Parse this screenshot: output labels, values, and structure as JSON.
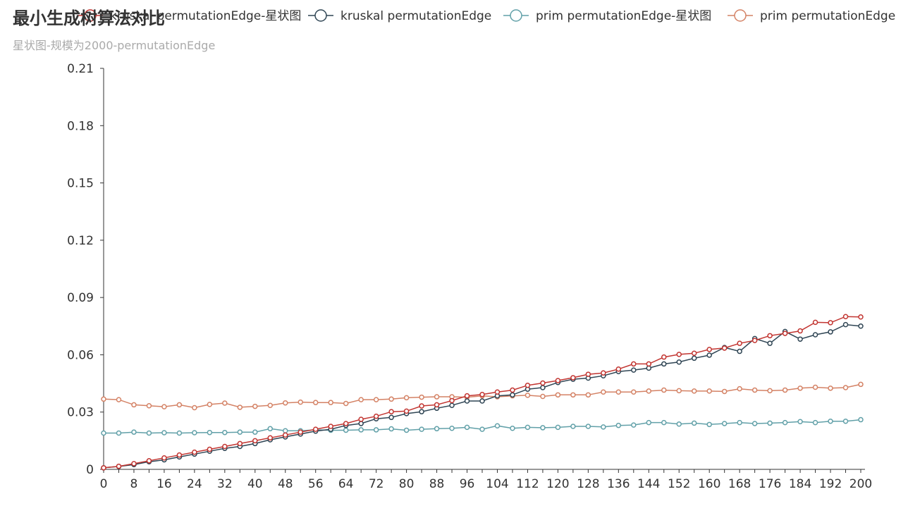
{
  "chart_data": {
    "type": "line",
    "title": "最小生成树算法对比",
    "subtitle": "星状图-规模为2000-permutationEdge",
    "xlabel": "",
    "ylabel": "",
    "ylim": [
      0,
      0.21
    ],
    "y_ticks": [
      "0",
      "0.03",
      "0.06",
      "0.09",
      "0.12",
      "0.15",
      "0.18",
      "0.21"
    ],
    "x_ticks": [
      "0",
      "8",
      "16",
      "24",
      "32",
      "40",
      "48",
      "56",
      "64",
      "72",
      "80",
      "88",
      "96",
      "104",
      "112",
      "120",
      "128",
      "136",
      "144",
      "152",
      "160",
      "168",
      "176",
      "184",
      "192",
      "200"
    ],
    "legend_position": "top-right",
    "x": [
      0,
      4,
      8,
      12,
      16,
      20,
      24,
      28,
      32,
      36,
      40,
      44,
      48,
      52,
      56,
      60,
      64,
      68,
      72,
      76,
      80,
      84,
      88,
      92,
      96,
      100,
      104,
      108,
      112,
      116,
      120,
      124,
      128,
      132,
      136,
      140,
      144,
      148,
      152,
      156,
      160,
      164,
      168,
      172,
      176,
      180,
      184,
      188,
      192,
      196,
      200
    ],
    "series": [
      {
        "name": "kruskal permutationEdge-星状图",
        "color": "#c23531",
        "values": [
          0.0008,
          0.0016,
          0.003,
          0.0045,
          0.006,
          0.0075,
          0.009,
          0.0105,
          0.012,
          0.0135,
          0.015,
          0.0165,
          0.018,
          0.0195,
          0.021,
          0.0225,
          0.024,
          0.0262,
          0.0278,
          0.0302,
          0.0305,
          0.0332,
          0.0338,
          0.036,
          0.0385,
          0.0392,
          0.0405,
          0.0415,
          0.044,
          0.0452,
          0.0465,
          0.048,
          0.0498,
          0.0505,
          0.0525,
          0.0552,
          0.0552,
          0.0588,
          0.0602,
          0.0608,
          0.0628,
          0.0635,
          0.066,
          0.0675,
          0.07,
          0.0712,
          0.0725,
          0.077,
          0.0768,
          0.08,
          0.0798
        ]
      },
      {
        "name": "kruskal permutationEdge",
        "color": "#2f4554",
        "values": [
          0.0008,
          0.0015,
          0.0025,
          0.004,
          0.005,
          0.0065,
          0.008,
          0.0095,
          0.011,
          0.012,
          0.0135,
          0.0155,
          0.017,
          0.0185,
          0.02,
          0.021,
          0.023,
          0.024,
          0.0265,
          0.0272,
          0.0292,
          0.0302,
          0.032,
          0.0335,
          0.0358,
          0.0358,
          0.0385,
          0.039,
          0.042,
          0.0428,
          0.0455,
          0.0472,
          0.0478,
          0.049,
          0.0512,
          0.052,
          0.053,
          0.0552,
          0.0562,
          0.0582,
          0.0598,
          0.0638,
          0.0618,
          0.0685,
          0.066,
          0.0722,
          0.0682,
          0.0705,
          0.072,
          0.0758,
          0.075
        ]
      },
      {
        "name": "prim permutationEdge-星状图",
        "color": "#61a0a8",
        "values": [
          0.019,
          0.019,
          0.0195,
          0.019,
          0.0192,
          0.019,
          0.0192,
          0.0193,
          0.0193,
          0.0195,
          0.0195,
          0.0213,
          0.0202,
          0.0202,
          0.0207,
          0.0205,
          0.0205,
          0.0207,
          0.0207,
          0.0212,
          0.0205,
          0.021,
          0.0213,
          0.0215,
          0.022,
          0.021,
          0.0228,
          0.0215,
          0.022,
          0.0218,
          0.022,
          0.0225,
          0.0225,
          0.0222,
          0.023,
          0.0232,
          0.0245,
          0.0245,
          0.0237,
          0.0242,
          0.0235,
          0.024,
          0.0245,
          0.024,
          0.0242,
          0.0245,
          0.025,
          0.0245,
          0.0252,
          0.0252,
          0.026
        ]
      },
      {
        "name": "prim permutationEdge",
        "color": "#d48265",
        "values": [
          0.0368,
          0.0365,
          0.0338,
          0.0333,
          0.0328,
          0.0338,
          0.0323,
          0.034,
          0.0347,
          0.0325,
          0.033,
          0.0335,
          0.0348,
          0.0352,
          0.035,
          0.035,
          0.0345,
          0.0365,
          0.0365,
          0.0368,
          0.0375,
          0.0378,
          0.038,
          0.038,
          0.0378,
          0.0385,
          0.038,
          0.0385,
          0.0388,
          0.0382,
          0.039,
          0.039,
          0.039,
          0.0405,
          0.0405,
          0.0405,
          0.041,
          0.0415,
          0.0412,
          0.041,
          0.041,
          0.0408,
          0.0422,
          0.0415,
          0.0412,
          0.0415,
          0.0425,
          0.043,
          0.0425,
          0.0428,
          0.0445
        ]
      }
    ]
  }
}
